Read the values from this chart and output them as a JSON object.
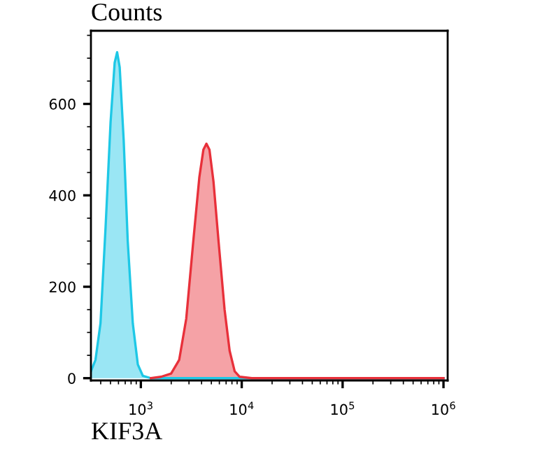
{
  "chart_data": {
    "type": "area",
    "title": "Counts",
    "xlabel": "KIF3A",
    "log": "x",
    "grid": false,
    "legend": false,
    "xlim": [
      320,
      1100000
    ],
    "ylim": [
      -5,
      760
    ],
    "xticks": [
      {
        "value": 1000,
        "label": "10$^{3}$"
      },
      {
        "value": 10000,
        "label": "10$^{4}$"
      },
      {
        "value": 100000,
        "label": "10$^{5}$"
      },
      {
        "value": 1000000,
        "label": "10$^{6}$"
      }
    ],
    "yticks": [
      0,
      200,
      400,
      600
    ],
    "series": [
      {
        "color": "#1ec8e6",
        "x": [
          320,
          355,
          398,
          447,
          501,
          550,
          582,
          617,
          676,
          741,
          832,
          933,
          1047,
          1259,
          10000,
          100000,
          1000000
        ],
        "values": [
          15,
          40,
          120,
          330,
          560,
          690,
          713,
          680,
          520,
          300,
          120,
          30,
          5,
          0,
          0,
          0,
          0
        ]
      },
      {
        "color": "#e8303a",
        "x": [
          1259,
          1585,
          1995,
          2399,
          2818,
          3311,
          3802,
          4169,
          4467,
          4786,
          5248,
          5888,
          6761,
          7586,
          8511,
          9550,
          12589,
          100000,
          1000000
        ],
        "values": [
          0,
          3,
          10,
          40,
          130,
          300,
          440,
          500,
          513,
          500,
          430,
          300,
          150,
          60,
          15,
          3,
          0,
          0,
          0
        ]
      }
    ]
  }
}
